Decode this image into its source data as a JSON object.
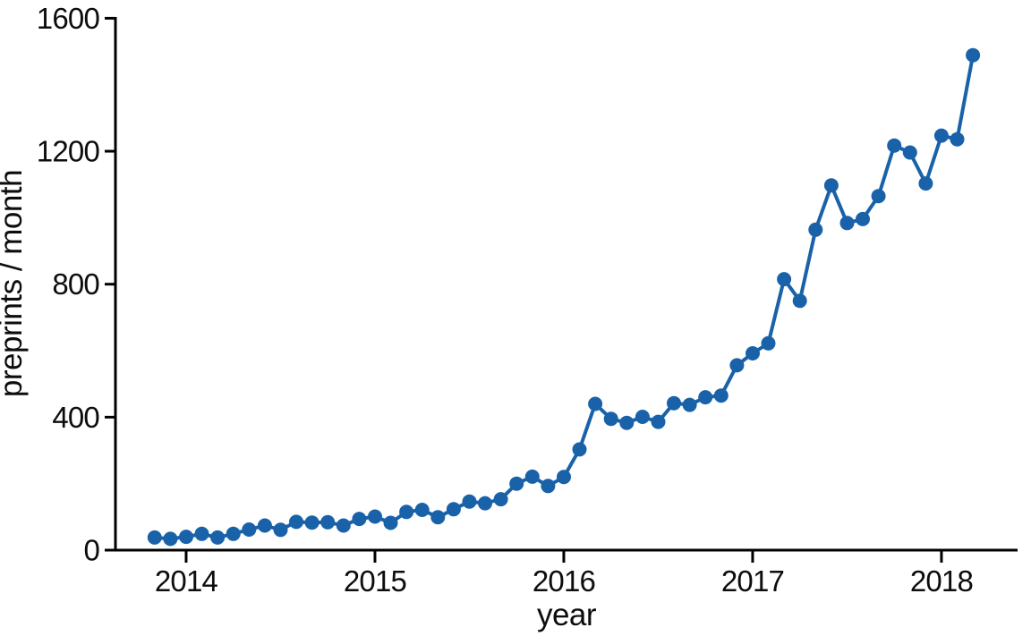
{
  "figure": {
    "background": "#ffffff",
    "axis_color": "#000000",
    "text_color": "#0d0d0d"
  },
  "chart_data": {
    "type": "line",
    "title": "",
    "xlabel": "year",
    "ylabel": "preprints / month",
    "line_color": "#1962a9",
    "marker": "circle",
    "marker_color": "#1962a9",
    "grid": false,
    "legend": "none",
    "ylim": [
      0,
      1600
    ],
    "yticks": [
      0,
      400,
      800,
      1200,
      1600
    ],
    "ytick_labels": [
      "0",
      "400",
      "800",
      "1200",
      "1600"
    ],
    "xtick_labels": [
      "2014",
      "2015",
      "2016",
      "2017",
      "2018"
    ],
    "xtick_month_indices": [
      2,
      14,
      26,
      38,
      50
    ],
    "x": [
      "2013-11",
      "2013-12",
      "2014-01",
      "2014-02",
      "2014-03",
      "2014-04",
      "2014-05",
      "2014-06",
      "2014-07",
      "2014-08",
      "2014-09",
      "2014-10",
      "2014-11",
      "2014-12",
      "2015-01",
      "2015-02",
      "2015-03",
      "2015-04",
      "2015-05",
      "2015-06",
      "2015-07",
      "2015-08",
      "2015-09",
      "2015-10",
      "2015-11",
      "2015-12",
      "2016-01",
      "2016-02",
      "2016-03",
      "2016-04",
      "2016-05",
      "2016-06",
      "2016-07",
      "2016-08",
      "2016-09",
      "2016-10",
      "2016-11",
      "2016-12",
      "2017-01",
      "2017-02",
      "2017-03",
      "2017-04",
      "2017-05",
      "2017-06",
      "2017-07",
      "2017-08",
      "2017-09",
      "2017-10",
      "2017-11",
      "2017-12",
      "2018-01",
      "2018-02",
      "2018-03"
    ],
    "values": [
      38,
      34,
      40,
      49,
      38,
      49,
      62,
      74,
      61,
      85,
      83,
      84,
      74,
      94,
      101,
      82,
      115,
      121,
      99,
      123,
      146,
      141,
      153,
      200,
      221,
      193,
      220,
      303,
      440,
      395,
      383,
      401,
      386,
      442,
      437,
      460,
      465,
      556,
      592,
      622,
      815,
      750,
      964,
      1097,
      984,
      996,
      1065,
      1217,
      1196,
      1103,
      1247,
      1236,
      1489
    ]
  }
}
